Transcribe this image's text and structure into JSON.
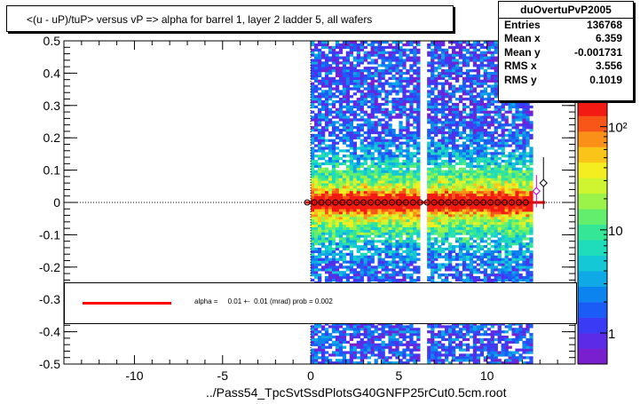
{
  "title": "<(u - uP)/tuP> versus   vP => alpha for barrel 1, layer 2 ladder 5, all wafers",
  "stats": {
    "name": "duOvertuPvP2005",
    "rows": [
      {
        "label": "Entries",
        "value": "136768"
      },
      {
        "label": "Mean x",
        "value": "6.359"
      },
      {
        "label": "Mean y",
        "value": "-0.001731"
      },
      {
        "label": "RMS x",
        "value": "3.556"
      },
      {
        "label": "RMS y",
        "value": "0.1019"
      }
    ]
  },
  "legend": {
    "text": "alpha =     0.01 +-  0.01 (mrad) prob = 0.002",
    "line_color": "#ff0000"
  },
  "filename": "../Pass54_TpcSvtSsdPlotsG40GNFP25rCut0.5cm.root",
  "chart_data": {
    "type": "heatmap",
    "xlim": [
      -14,
      15
    ],
    "ylim": [
      -0.5,
      0.5
    ],
    "x_ticks": [
      -10,
      -5,
      0,
      5,
      10
    ],
    "y_ticks": [
      -0.5,
      -0.4,
      -0.3,
      -0.2,
      -0.1,
      0,
      0.1,
      0.2,
      0.3,
      0.4,
      0.5
    ],
    "y_tick_labels": [
      "-0.5",
      "-0.4",
      "-0.3",
      "-0.2",
      "-0.1",
      "0",
      "0.1",
      "0.2",
      "0.3",
      "0.4",
      "0.5"
    ],
    "data_x_range": [
      0,
      12.6
    ],
    "gap_x_range": [
      6.2,
      6.6
    ],
    "color_scale": {
      "type": "log",
      "labels": [
        "1",
        "10",
        "10²"
      ],
      "label_values": [
        1,
        10,
        100
      ],
      "min": 0.5,
      "max": 180,
      "colors": [
        "#7a1fd0",
        "#5b2be8",
        "#3a3cf5",
        "#1c5cf6",
        "#0c84f0",
        "#0fa9e6",
        "#14c8d6",
        "#1fdcba",
        "#36e697",
        "#64ee6e",
        "#9bf34a",
        "#cef530",
        "#f4ee20",
        "#fbc418",
        "#fb9018",
        "#f85618",
        "#f21a12"
      ]
    },
    "profile_points": [
      {
        "x": -0.2,
        "y": 0.0
      },
      {
        "x": 0.2,
        "y": 0.0
      },
      {
        "x": 0.6,
        "y": 0.0
      },
      {
        "x": 1.0,
        "y": 0.0
      },
      {
        "x": 1.4,
        "y": 0.0
      },
      {
        "x": 1.8,
        "y": 0.0
      },
      {
        "x": 2.2,
        "y": 0.0
      },
      {
        "x": 2.6,
        "y": 0.0
      },
      {
        "x": 3.0,
        "y": 0.0
      },
      {
        "x": 3.4,
        "y": 0.0
      },
      {
        "x": 3.8,
        "y": 0.0
      },
      {
        "x": 4.2,
        "y": 0.0
      },
      {
        "x": 4.6,
        "y": 0.0
      },
      {
        "x": 5.0,
        "y": 0.0
      },
      {
        "x": 5.4,
        "y": 0.0
      },
      {
        "x": 5.8,
        "y": 0.0
      },
      {
        "x": 6.2,
        "y": 0.0
      },
      {
        "x": 6.6,
        "y": 0.0
      },
      {
        "x": 7.0,
        "y": 0.0
      },
      {
        "x": 7.4,
        "y": 0.0
      },
      {
        "x": 7.8,
        "y": 0.0
      },
      {
        "x": 8.2,
        "y": 0.0
      },
      {
        "x": 8.6,
        "y": 0.0
      },
      {
        "x": 9.0,
        "y": 0.0
      },
      {
        "x": 9.4,
        "y": 0.0
      },
      {
        "x": 9.8,
        "y": 0.0
      },
      {
        "x": 10.2,
        "y": 0.0
      },
      {
        "x": 10.6,
        "y": 0.0
      },
      {
        "x": 11.0,
        "y": 0.0
      },
      {
        "x": 11.4,
        "y": 0.0
      },
      {
        "x": 11.8,
        "y": 0.0
      },
      {
        "x": 12.2,
        "y": 0.0
      }
    ],
    "outlier_points": [
      {
        "x": 12.8,
        "y": 0.035,
        "err": 0.05,
        "color": "#cc00cc"
      },
      {
        "x": 13.2,
        "y": 0.06,
        "err": 0.08,
        "color": "#000000"
      }
    ],
    "fit": {
      "slope": 1e-05,
      "intercept": 0.0,
      "x_range": [
        -0.3,
        13.3
      ],
      "color": "#ff0000"
    }
  }
}
